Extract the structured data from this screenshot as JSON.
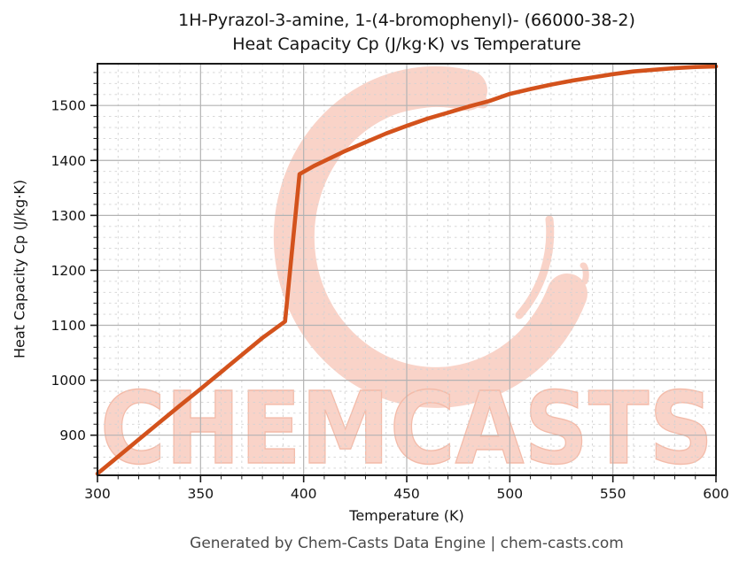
{
  "header": {
    "title_line1": "1H-Pyrazol-3-amine, 1-(4-bromophenyl)- (66000-38-2)",
    "title_line2": "Heat Capacity Cp (J/kg·K) vs Temperature"
  },
  "footer": {
    "text": "Generated by Chem-Casts Data Engine | chem-casts.com"
  },
  "watermark": {
    "text": "CHEMCASTS",
    "logo_icon": "c-swirl-logo",
    "color": "#f9d3c8",
    "outline_color": "#f3bba9"
  },
  "chart_data": {
    "type": "line",
    "title": "1H-Pyrazol-3-amine, 1-(4-bromophenyl)- (66000-38-2)",
    "subtitle": "Heat Capacity Cp (J/kg·K) vs Temperature",
    "xlabel": "Temperature (K)",
    "ylabel": "Heat Capacity Cp (J/kg·K)",
    "xlim": [
      300,
      600
    ],
    "ylim": [
      827,
      1576
    ],
    "xticks": [
      300,
      350,
      400,
      450,
      500,
      550,
      600
    ],
    "yticks": [
      900,
      1000,
      1100,
      1200,
      1300,
      1400,
      1500
    ],
    "x_minor_step": 10,
    "y_minor_step": 20,
    "grid": {
      "major": "solid",
      "minor": "dashed",
      "major_color": "#b3b3b3",
      "minor_color": "#d2d2d2"
    },
    "legend": "none",
    "annotations": "phase-transition jump near 391-398 K",
    "series": [
      {
        "name": "Heat Capacity Cp",
        "color": "#d3521c",
        "points": [
          [
            300,
            830
          ],
          [
            310,
            861
          ],
          [
            320,
            892
          ],
          [
            330,
            923
          ],
          [
            340,
            954
          ],
          [
            350,
            984
          ],
          [
            360,
            1015
          ],
          [
            370,
            1046
          ],
          [
            380,
            1077
          ],
          [
            391,
            1107
          ],
          [
            398,
            1375
          ],
          [
            405,
            1390
          ],
          [
            410,
            1399
          ],
          [
            420,
            1417
          ],
          [
            430,
            1433
          ],
          [
            440,
            1449
          ],
          [
            450,
            1463
          ],
          [
            460,
            1476
          ],
          [
            470,
            1487
          ],
          [
            480,
            1498
          ],
          [
            490,
            1508
          ],
          [
            500,
            1521
          ],
          [
            510,
            1530
          ],
          [
            520,
            1538
          ],
          [
            530,
            1545
          ],
          [
            540,
            1551
          ],
          [
            550,
            1557
          ],
          [
            560,
            1562
          ],
          [
            570,
            1565
          ],
          [
            580,
            1568
          ],
          [
            590,
            1570
          ],
          [
            600,
            1571
          ]
        ]
      }
    ]
  }
}
